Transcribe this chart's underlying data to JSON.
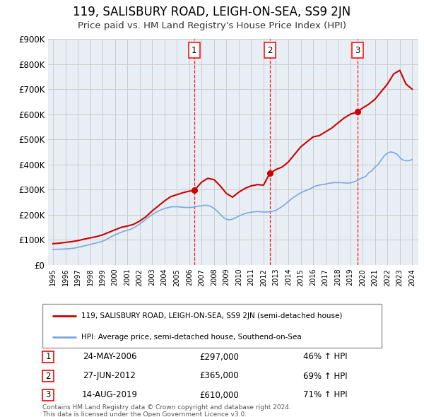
{
  "title": "119, SALISBURY ROAD, LEIGH-ON-SEA, SS9 2JN",
  "subtitle": "Price paid vs. HM Land Registry's House Price Index (HPI)",
  "title_fontsize": 12,
  "subtitle_fontsize": 9.5,
  "xlim": [
    1994.6,
    2024.5
  ],
  "ylim": [
    0,
    900000
  ],
  "yticks": [
    0,
    100000,
    200000,
    300000,
    400000,
    500000,
    600000,
    700000,
    800000,
    900000
  ],
  "ytick_labels": [
    "£0",
    "£100K",
    "£200K",
    "£300K",
    "£400K",
    "£500K",
    "£600K",
    "£700K",
    "£800K",
    "£900K"
  ],
  "grid_color": "#cccccc",
  "bg_color": "#e8eef5",
  "sale_color": "#cc0000",
  "hpi_color": "#7aaadd",
  "sale_label": "119, SALISBURY ROAD, LEIGH-ON-SEA, SS9 2JN (semi-detached house)",
  "hpi_label": "HPI: Average price, semi-detached house, Southend-on-Sea",
  "transactions": [
    {
      "num": 1,
      "date_str": "24-MAY-2006",
      "year": 2006.4,
      "price": 297000,
      "pct": "46%",
      "x_line": 2006.4
    },
    {
      "num": 2,
      "date_str": "27-JUN-2012",
      "year": 2012.5,
      "price": 365000,
      "pct": "69%",
      "x_line": 2012.5
    },
    {
      "num": 3,
      "date_str": "14-AUG-2019",
      "year": 2019.6,
      "price": 610000,
      "pct": "71%",
      "x_line": 2019.6
    }
  ],
  "footer1": "Contains HM Land Registry data © Crown copyright and database right 2024.",
  "footer2": "This data is licensed under the Open Government Licence v3.0.",
  "hpi_data_x": [
    1995.0,
    1995.25,
    1995.5,
    1995.75,
    1996.0,
    1996.25,
    1996.5,
    1996.75,
    1997.0,
    1997.25,
    1997.5,
    1997.75,
    1998.0,
    1998.25,
    1998.5,
    1998.75,
    1999.0,
    1999.25,
    1999.5,
    1999.75,
    2000.0,
    2000.25,
    2000.5,
    2000.75,
    2001.0,
    2001.25,
    2001.5,
    2001.75,
    2002.0,
    2002.25,
    2002.5,
    2002.75,
    2003.0,
    2003.25,
    2003.5,
    2003.75,
    2004.0,
    2004.25,
    2004.5,
    2004.75,
    2005.0,
    2005.25,
    2005.5,
    2005.75,
    2006.0,
    2006.25,
    2006.5,
    2006.75,
    2007.0,
    2007.25,
    2007.5,
    2007.75,
    2008.0,
    2008.25,
    2008.5,
    2008.75,
    2009.0,
    2009.25,
    2009.5,
    2009.75,
    2010.0,
    2010.25,
    2010.5,
    2010.75,
    2011.0,
    2011.25,
    2011.5,
    2011.75,
    2012.0,
    2012.25,
    2012.5,
    2012.75,
    2013.0,
    2013.25,
    2013.5,
    2013.75,
    2014.0,
    2014.25,
    2014.5,
    2014.75,
    2015.0,
    2015.25,
    2015.5,
    2015.75,
    2016.0,
    2016.25,
    2016.5,
    2016.75,
    2017.0,
    2017.25,
    2017.5,
    2017.75,
    2018.0,
    2018.25,
    2018.5,
    2018.75,
    2019.0,
    2019.25,
    2019.5,
    2019.75,
    2020.0,
    2020.25,
    2020.5,
    2020.75,
    2021.0,
    2021.25,
    2021.5,
    2021.75,
    2022.0,
    2022.25,
    2022.5,
    2022.75,
    2023.0,
    2023.25,
    2023.5,
    2023.75,
    2024.0
  ],
  "hpi_data_y": [
    62000,
    62500,
    63000,
    63500,
    64000,
    65000,
    66000,
    67500,
    70000,
    73000,
    76000,
    79000,
    82000,
    85000,
    88000,
    91000,
    95000,
    100000,
    107000,
    114000,
    120000,
    125000,
    130000,
    135000,
    138000,
    142000,
    148000,
    155000,
    163000,
    172000,
    182000,
    192000,
    200000,
    208000,
    215000,
    220000,
    225000,
    228000,
    231000,
    232000,
    232000,
    231000,
    230000,
    229000,
    229000,
    230000,
    232000,
    234000,
    236000,
    238000,
    237000,
    233000,
    225000,
    215000,
    202000,
    190000,
    182000,
    180000,
    183000,
    188000,
    195000,
    200000,
    205000,
    208000,
    210000,
    212000,
    213000,
    212000,
    211000,
    211000,
    212000,
    214000,
    218000,
    225000,
    233000,
    242000,
    253000,
    263000,
    272000,
    280000,
    287000,
    293000,
    298000,
    303000,
    310000,
    315000,
    318000,
    320000,
    322000,
    325000,
    327000,
    328000,
    328000,
    328000,
    327000,
    326000,
    327000,
    330000,
    335000,
    342000,
    348000,
    352000,
    368000,
    375000,
    390000,
    400000,
    418000,
    435000,
    445000,
    450000,
    448000,
    442000,
    428000,
    418000,
    415000,
    415000,
    420000
  ],
  "sale_data_x": [
    1995.0,
    1995.5,
    1996.0,
    1996.5,
    1997.0,
    1997.5,
    1998.0,
    1998.5,
    1999.0,
    1999.5,
    2000.0,
    2000.5,
    2001.0,
    2001.5,
    2002.0,
    2002.5,
    2003.0,
    2003.5,
    2004.0,
    2004.5,
    2005.0,
    2005.5,
    2006.0,
    2006.4,
    2006.5,
    2007.0,
    2007.5,
    2008.0,
    2008.5,
    2009.0,
    2009.5,
    2010.0,
    2010.5,
    2011.0,
    2011.5,
    2012.0,
    2012.5,
    2013.0,
    2013.5,
    2014.0,
    2014.5,
    2015.0,
    2015.5,
    2016.0,
    2016.5,
    2017.0,
    2017.5,
    2018.0,
    2018.5,
    2019.0,
    2019.6,
    2020.0,
    2020.5,
    2021.0,
    2021.5,
    2022.0,
    2022.5,
    2023.0,
    2023.5,
    2024.0
  ],
  "sale_data_y": [
    85000,
    87000,
    90000,
    93000,
    97000,
    103000,
    108000,
    113000,
    120000,
    130000,
    140000,
    150000,
    155000,
    162000,
    175000,
    192000,
    215000,
    235000,
    255000,
    272000,
    280000,
    288000,
    294000,
    297000,
    302000,
    330000,
    345000,
    340000,
    315000,
    285000,
    270000,
    290000,
    305000,
    315000,
    320000,
    318000,
    365000,
    380000,
    390000,
    410000,
    440000,
    470000,
    490000,
    510000,
    515000,
    530000,
    545000,
    565000,
    585000,
    600000,
    610000,
    625000,
    640000,
    660000,
    690000,
    720000,
    760000,
    775000,
    720000,
    700000
  ]
}
